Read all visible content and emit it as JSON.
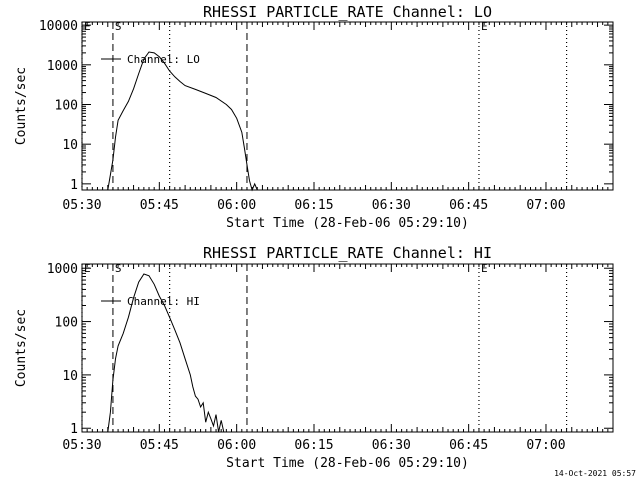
{
  "chart_data": [
    {
      "type": "line",
      "title": "RHESSI PARTICLE_RATE Channel: LO",
      "xlabel": "Start Time (28-Feb-06 05:29:10)",
      "ylabel": "Counts/sec",
      "x_scale": "time",
      "y_scale": "log",
      "xlim": [
        "05:30",
        "07:13"
      ],
      "ylim": [
        0.7,
        12000
      ],
      "x_ticks": [
        "05:30",
        "05:45",
        "06:00",
        "06:15",
        "06:30",
        "06:45",
        "07:00"
      ],
      "y_ticks": [
        "1",
        "10",
        "100",
        "1000",
        "10000"
      ],
      "legend": {
        "placement": "top-left",
        "entries": [
          "Channel: LO"
        ]
      },
      "markers": [
        {
          "label": "E",
          "time": "05:30",
          "style": "dotted"
        },
        {
          "label": "S",
          "time": "05:36",
          "style": "dashed"
        },
        {
          "label": "",
          "time": "05:47",
          "style": "dotted"
        },
        {
          "label": "",
          "time": "06:02",
          "style": "dashed"
        },
        {
          "label": "E",
          "time": "06:47",
          "style": "dotted"
        },
        {
          "label": "",
          "time": "07:04",
          "style": "dotted"
        }
      ],
      "series": [
        {
          "name": "Channel: LO",
          "points": [
            [
              "05:35:00",
              0.7
            ],
            [
              "05:36:00",
              4
            ],
            [
              "05:36:30",
              15
            ],
            [
              "05:37:00",
              40
            ],
            [
              "05:38:00",
              70
            ],
            [
              "05:39:00",
              120
            ],
            [
              "05:40:00",
              250
            ],
            [
              "05:41:00",
              600
            ],
            [
              "05:42:00",
              1400
            ],
            [
              "05:43:00",
              2100
            ],
            [
              "05:44:00",
              2000
            ],
            [
              "05:45:00",
              1600
            ],
            [
              "05:46:00",
              1100
            ],
            [
              "05:47:00",
              700
            ],
            [
              "05:48:00",
              500
            ],
            [
              "05:49:00",
              380
            ],
            [
              "05:50:00",
              300
            ],
            [
              "05:52:00",
              240
            ],
            [
              "05:54:00",
              190
            ],
            [
              "05:56:00",
              150
            ],
            [
              "05:58:00",
              100
            ],
            [
              "05:59:00",
              75
            ],
            [
              "06:00:00",
              45
            ],
            [
              "06:01:00",
              20
            ],
            [
              "06:01:30",
              8
            ],
            [
              "06:02:00",
              3
            ],
            [
              "06:02:30",
              1.2
            ],
            [
              "06:03:00",
              0.7
            ],
            [
              "06:03:30",
              1.0
            ],
            [
              "06:04:00",
              0.7
            ]
          ]
        }
      ]
    },
    {
      "type": "line",
      "title": "RHESSI PARTICLE_RATE Channel: HI",
      "xlabel": "Start Time (28-Feb-06 05:29:10)",
      "ylabel": "Counts/sec",
      "x_scale": "time",
      "y_scale": "log",
      "xlim": [
        "05:30",
        "07:13"
      ],
      "ylim": [
        0.85,
        1200
      ],
      "x_ticks": [
        "05:30",
        "05:45",
        "06:00",
        "06:15",
        "06:30",
        "06:45",
        "07:00"
      ],
      "y_ticks": [
        "1",
        "10",
        "100",
        "1000"
      ],
      "legend": {
        "placement": "top-left",
        "entries": [
          "Channel: HI"
        ]
      },
      "markers": [
        {
          "label": "E",
          "time": "05:30",
          "style": "dotted"
        },
        {
          "label": "S",
          "time": "05:36",
          "style": "dashed"
        },
        {
          "label": "",
          "time": "05:47",
          "style": "dotted"
        },
        {
          "label": "",
          "time": "06:02",
          "style": "dashed"
        },
        {
          "label": "E",
          "time": "06:47",
          "style": "dotted"
        },
        {
          "label": "",
          "time": "07:04",
          "style": "dotted"
        }
      ],
      "series": [
        {
          "name": "Channel: HI",
          "points": [
            [
              "05:35:00",
              0.85
            ],
            [
              "05:35:30",
              2
            ],
            [
              "05:36:00",
              8
            ],
            [
              "05:36:30",
              20
            ],
            [
              "05:37:00",
              35
            ],
            [
              "05:38:00",
              60
            ],
            [
              "05:39:00",
              120
            ],
            [
              "05:40:00",
              280
            ],
            [
              "05:41:00",
              550
            ],
            [
              "05:42:00",
              780
            ],
            [
              "05:43:00",
              720
            ],
            [
              "05:44:00",
              500
            ],
            [
              "05:45:00",
              300
            ],
            [
              "05:46:00",
              200
            ],
            [
              "05:47:00",
              120
            ],
            [
              "05:48:00",
              70
            ],
            [
              "05:49:00",
              40
            ],
            [
              "05:50:00",
              20
            ],
            [
              "05:51:00",
              10
            ],
            [
              "05:51:30",
              6
            ],
            [
              "05:52:00",
              4
            ],
            [
              "05:52:30",
              3.5
            ],
            [
              "05:53:00",
              2.5
            ],
            [
              "05:53:30",
              3
            ],
            [
              "05:54:00",
              1.3
            ],
            [
              "05:54:30",
              2
            ],
            [
              "05:55:00",
              1.5
            ],
            [
              "05:55:30",
              1.1
            ],
            [
              "05:56:00",
              1.8
            ],
            [
              "05:56:30",
              0.85
            ],
            [
              "05:57:00",
              1.4
            ],
            [
              "05:57:30",
              0.85
            ]
          ]
        }
      ]
    }
  ],
  "footer": {
    "timestamp": "14-Oct-2021 05:57"
  }
}
